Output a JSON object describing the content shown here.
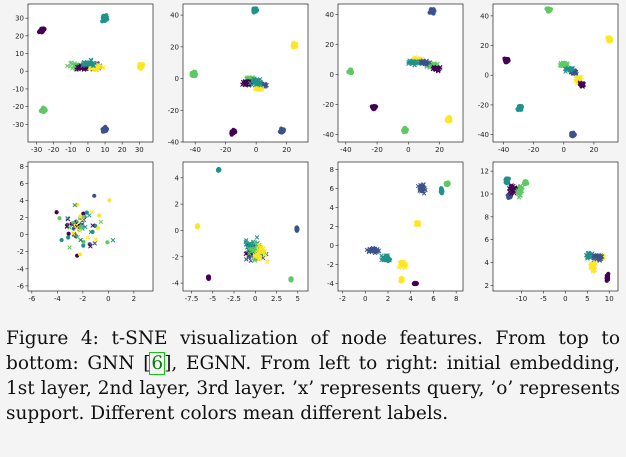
{
  "figure": {
    "caption_prefix": "Figure 4: t-SNE visualization of node features. From top to bottom: GNN [",
    "caption_ref": "6",
    "caption_suffix": "], EGNN. From left to right: initial embedding, 1st layer, 2nd layer, 3rd layer. ’x’ represents query, ’o’ represents support. Different colors mean different labels.",
    "colors": [
      "#440154",
      "#3b528b",
      "#21918c",
      "#5ec962",
      "#fde725"
    ]
  },
  "chart_data": [
    {
      "type": "scatter",
      "name": "GNN initial embedding",
      "xlim": [
        -35,
        38
      ],
      "ylim": [
        -40,
        38
      ],
      "xticks": [
        -30,
        -20,
        -10,
        0,
        10,
        20,
        30
      ],
      "yticks": [
        -30,
        -20,
        -10,
        0,
        10,
        20,
        30
      ],
      "clusters": [
        [
          -27,
          23,
          2,
          2,
          0,
          "o"
        ],
        [
          10,
          30,
          2,
          2,
          2,
          "o"
        ],
        [
          31,
          3,
          2,
          2,
          4,
          "o"
        ],
        [
          -26,
          -22,
          2,
          2,
          3,
          "o"
        ],
        [
          10,
          -33,
          2,
          2,
          1,
          "o"
        ],
        [
          -6,
          3,
          7,
          2.5,
          3,
          "x"
        ],
        [
          4,
          3,
          6,
          2.5,
          1,
          "x"
        ],
        [
          -4,
          2,
          5,
          2,
          0,
          "x"
        ],
        [
          5,
          2,
          5,
          2,
          4,
          "x"
        ],
        [
          0,
          4,
          6,
          3,
          2,
          "x"
        ]
      ]
    },
    {
      "type": "scatter",
      "name": "GNN 1st layer",
      "xlim": [
        -48,
        34
      ],
      "ylim": [
        -40,
        47
      ],
      "xticks": [
        -40,
        -20,
        0,
        20
      ],
      "yticks": [
        -40,
        -20,
        0,
        20,
        40
      ],
      "clusters": [
        [
          -1,
          43,
          2,
          2,
          2,
          "o"
        ],
        [
          25,
          21,
          2,
          2,
          4,
          "o"
        ],
        [
          -41,
          3,
          2,
          2,
          3,
          "o"
        ],
        [
          -15,
          -34,
          2,
          2,
          0,
          "o"
        ],
        [
          17,
          -33,
          2,
          2,
          1,
          "o"
        ],
        [
          -3,
          -1,
          6,
          3,
          3,
          "x"
        ],
        [
          4,
          -4,
          5,
          2,
          1,
          "x"
        ],
        [
          -6,
          -3,
          4,
          2,
          0,
          "x"
        ],
        [
          2,
          -6,
          4,
          2,
          4,
          "x"
        ],
        [
          0,
          -2,
          5,
          3,
          2,
          "x"
        ]
      ]
    },
    {
      "type": "scatter",
      "name": "GNN 2nd layer",
      "xlim": [
        -45,
        35
      ],
      "ylim": [
        -45,
        47
      ],
      "xticks": [
        -40,
        -20,
        0,
        20
      ],
      "yticks": [
        -40,
        -20,
        0,
        20,
        40
      ],
      "clusters": [
        [
          15,
          42,
          2,
          2,
          1,
          "o"
        ],
        [
          26,
          -30,
          2,
          2,
          4,
          "o"
        ],
        [
          -37,
          2,
          2,
          2,
          3,
          "o"
        ],
        [
          -22,
          -22,
          2,
          2,
          0,
          "o"
        ],
        [
          -2,
          -37,
          2,
          2,
          3,
          "o"
        ],
        [
          5,
          10,
          5,
          2,
          4,
          "x"
        ],
        [
          15,
          6,
          6,
          2,
          3,
          "x"
        ],
        [
          10,
          8,
          4,
          2,
          1,
          "x"
        ],
        [
          18,
          4,
          4,
          2,
          0,
          "x"
        ],
        [
          3,
          8,
          4,
          2,
          2,
          "x"
        ]
      ]
    },
    {
      "type": "scatter",
      "name": "GNN 3rd layer",
      "xlim": [
        -47,
        36
      ],
      "ylim": [
        -45,
        48
      ],
      "xticks": [
        -40,
        -20,
        0,
        20
      ],
      "yticks": [
        -40,
        -20,
        0,
        20,
        40
      ],
      "clusters": [
        [
          -10,
          44,
          2,
          2,
          3,
          "o"
        ],
        [
          30,
          24,
          2,
          2,
          4,
          "o"
        ],
        [
          -38,
          10,
          2,
          2,
          0,
          "o"
        ],
        [
          -29,
          -22,
          2,
          2,
          2,
          "o"
        ],
        [
          6,
          -40,
          2,
          2,
          1,
          "o"
        ],
        [
          0,
          7,
          4,
          2,
          3,
          "x"
        ],
        [
          7,
          2,
          4,
          2,
          1,
          "x"
        ],
        [
          10,
          -3,
          3,
          3,
          4,
          "x"
        ],
        [
          3,
          4,
          4,
          2,
          2,
          "x"
        ],
        [
          12,
          -6,
          2,
          2,
          0,
          "x"
        ]
      ]
    },
    {
      "type": "scatter",
      "name": "EGNN initial embedding",
      "xlim": [
        -6.3,
        3.5
      ],
      "ylim": [
        -6.6,
        8.5
      ],
      "xticks": [
        -6,
        -4,
        -2,
        0,
        2
      ],
      "yticks": [
        -6,
        -4,
        -2,
        0,
        2,
        4,
        6,
        8
      ],
      "clusters": [
        [
          -2,
          1,
          3,
          4.5,
          0,
          "o"
        ],
        [
          -2,
          1,
          3,
          4.5,
          1,
          "o"
        ],
        [
          -2,
          1,
          3,
          4.5,
          2,
          "o"
        ],
        [
          -2,
          1,
          3,
          4.5,
          3,
          "o"
        ],
        [
          -2,
          1,
          3,
          4.5,
          4,
          "o"
        ],
        [
          -2,
          1,
          3,
          4.5,
          0,
          "x"
        ],
        [
          -2,
          1,
          3,
          4.5,
          1,
          "x"
        ],
        [
          -2,
          1,
          3,
          4.5,
          2,
          "x"
        ],
        [
          -2,
          1,
          3,
          4.5,
          3,
          "x"
        ],
        [
          -2,
          1,
          3,
          4.5,
          4,
          "x"
        ]
      ]
    },
    {
      "type": "scatter",
      "name": "EGNN 1st layer",
      "xlim": [
        -8.5,
        6.2
      ],
      "ylim": [
        -4.6,
        5.2
      ],
      "xticks": [
        -7.5,
        -5.0,
        -2.5,
        0.0,
        2.5,
        5.0
      ],
      "yticks": [
        -4,
        -2,
        0,
        2,
        4
      ],
      "clusters": [
        [
          -4.3,
          4.6,
          0.1,
          0.1,
          2,
          "o"
        ],
        [
          -6.8,
          0.3,
          0.1,
          0.15,
          4,
          "o"
        ],
        [
          -5.5,
          -3.6,
          0.1,
          0.15,
          0,
          "o"
        ],
        [
          4.9,
          0.1,
          0.1,
          0.15,
          1,
          "o"
        ],
        [
          4.2,
          -3.7,
          0.1,
          0.12,
          3,
          "o"
        ],
        [
          -0.3,
          -1.5,
          1.4,
          0.9,
          0,
          "x"
        ],
        [
          0.2,
          -1.7,
          1.4,
          0.9,
          1,
          "x"
        ],
        [
          -0.4,
          -1.2,
          1.2,
          0.9,
          2,
          "x"
        ],
        [
          0.1,
          -1.6,
          1.3,
          0.9,
          3,
          "x"
        ],
        [
          0.5,
          -1.8,
          1.2,
          0.9,
          4,
          "x"
        ]
      ]
    },
    {
      "type": "scatter",
      "name": "EGNN 2nd layer",
      "xlim": [
        -2.4,
        8.6
      ],
      "ylim": [
        -4.8,
        8.8
      ],
      "xticks": [
        -2,
        0,
        2,
        4,
        6,
        8
      ],
      "yticks": [
        -4,
        -2,
        0,
        2,
        4,
        6,
        8
      ],
      "clusters": [
        [
          7.2,
          6.5,
          0.2,
          0.25,
          3,
          "o"
        ],
        [
          6.7,
          5.8,
          0.1,
          0.4,
          2,
          "o"
        ],
        [
          3.2,
          -3.6,
          0.15,
          0.3,
          4,
          "o"
        ],
        [
          4.4,
          -4.0,
          0.2,
          0.1,
          0,
          "o"
        ],
        [
          2.0,
          -1.5,
          0.3,
          0.15,
          2,
          "o"
        ],
        [
          5.0,
          6.0,
          0.4,
          0.7,
          1,
          "x"
        ],
        [
          4.6,
          2.3,
          0.2,
          0.3,
          4,
          "x"
        ],
        [
          0.8,
          -0.5,
          0.8,
          0.4,
          1,
          "x"
        ],
        [
          1.7,
          -1.3,
          0.6,
          0.4,
          2,
          "x"
        ],
        [
          3.3,
          -2.0,
          0.5,
          0.5,
          4,
          "x"
        ]
      ]
    },
    {
      "type": "scatter",
      "name": "EGNN 3rd layer",
      "xlim": [
        -16.5,
        12
      ],
      "ylim": [
        1.5,
        12.8
      ],
      "xticks": [
        -10,
        -5,
        0,
        5,
        10
      ],
      "yticks": [
        2,
        4,
        6,
        8,
        10,
        12
      ],
      "clusters": [
        [
          -13.3,
          11.2,
          0.5,
          0.35,
          2,
          "o"
        ],
        [
          -12.7,
          9.8,
          0.6,
          0.2,
          1,
          "o"
        ],
        [
          -9,
          11,
          0.6,
          0.2,
          3,
          "o"
        ],
        [
          8.3,
          4.5,
          0.6,
          0.2,
          4,
          "o"
        ],
        [
          9.6,
          2.7,
          0.3,
          0.4,
          0,
          "o"
        ],
        [
          -12,
          10.5,
          1.2,
          0.7,
          0,
          "x"
        ],
        [
          -10.5,
          10.2,
          1.0,
          0.7,
          3,
          "x"
        ],
        [
          5.5,
          4.6,
          1.5,
          0.4,
          2,
          "x"
        ],
        [
          7.5,
          4.4,
          1.5,
          0.4,
          1,
          "x"
        ],
        [
          6.3,
          3.6,
          1.0,
          0.6,
          4,
          "x"
        ]
      ]
    }
  ]
}
